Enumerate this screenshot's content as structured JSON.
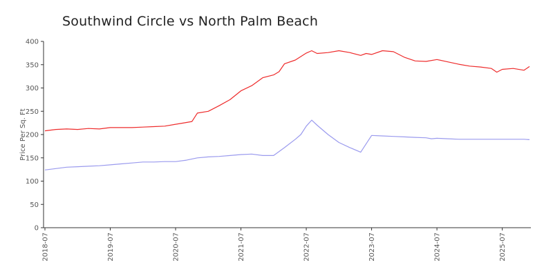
{
  "chart_data": {
    "type": "line",
    "title": "Southwind Circle vs North Palm Beach",
    "ylabel": "Price Per Sq. Ft",
    "xlabel": "",
    "ylim": [
      0,
      400
    ],
    "yticks": [
      "0",
      "50",
      "100",
      "150",
      "200",
      "250",
      "300",
      "350",
      "400"
    ],
    "xticks": [
      "2018-07",
      "2019-07",
      "2020-07",
      "2021-07",
      "2022-07",
      "2023-07",
      "2024-07",
      "2025-07"
    ],
    "xrange": [
      "2018-07",
      "2025-12"
    ],
    "legend": "none",
    "grid": false,
    "colors": {
      "red_series": "#ee2a2a",
      "blue_series": "#9a9aee",
      "axis": "#333333"
    },
    "series": [
      {
        "color": "#ee2a2a",
        "points": [
          [
            "2018-07",
            208
          ],
          [
            "2018-09",
            211
          ],
          [
            "2018-11",
            212
          ],
          [
            "2019-01",
            211
          ],
          [
            "2019-03",
            213
          ],
          [
            "2019-05",
            212
          ],
          [
            "2019-07",
            215
          ],
          [
            "2019-09",
            215
          ],
          [
            "2019-11",
            215
          ],
          [
            "2020-01",
            216
          ],
          [
            "2020-03",
            217
          ],
          [
            "2020-05",
            218
          ],
          [
            "2020-07",
            222
          ],
          [
            "2020-09",
            226
          ],
          [
            "2020-10",
            228
          ],
          [
            "2020-11",
            246
          ],
          [
            "2021-01",
            250
          ],
          [
            "2021-03",
            262
          ],
          [
            "2021-05",
            275
          ],
          [
            "2021-07",
            294
          ],
          [
            "2021-09",
            305
          ],
          [
            "2021-11",
            322
          ],
          [
            "2022-01",
            328
          ],
          [
            "2022-02",
            335
          ],
          [
            "2022-03",
            352
          ],
          [
            "2022-05",
            360
          ],
          [
            "2022-07",
            375
          ],
          [
            "2022-08",
            380
          ],
          [
            "2022-09",
            374
          ],
          [
            "2022-11",
            376
          ],
          [
            "2023-01",
            380
          ],
          [
            "2023-03",
            376
          ],
          [
            "2023-05",
            370
          ],
          [
            "2023-06",
            374
          ],
          [
            "2023-07",
            372
          ],
          [
            "2023-09",
            380
          ],
          [
            "2023-11",
            378
          ],
          [
            "2024-01",
            366
          ],
          [
            "2024-03",
            358
          ],
          [
            "2024-05",
            357
          ],
          [
            "2024-07",
            361
          ],
          [
            "2024-09",
            356
          ],
          [
            "2024-11",
            351
          ],
          [
            "2025-01",
            347
          ],
          [
            "2025-03",
            345
          ],
          [
            "2025-05",
            342
          ],
          [
            "2025-06",
            334
          ],
          [
            "2025-07",
            340
          ],
          [
            "2025-09",
            342
          ],
          [
            "2025-11",
            338
          ],
          [
            "2025-12",
            346
          ]
        ]
      },
      {
        "color": "#9a9aee",
        "points": [
          [
            "2018-07",
            124
          ],
          [
            "2018-09",
            127
          ],
          [
            "2018-11",
            130
          ],
          [
            "2019-01",
            131
          ],
          [
            "2019-03",
            132
          ],
          [
            "2019-05",
            133
          ],
          [
            "2019-07",
            135
          ],
          [
            "2019-09",
            137
          ],
          [
            "2019-11",
            139
          ],
          [
            "2020-01",
            141
          ],
          [
            "2020-03",
            141
          ],
          [
            "2020-05",
            142
          ],
          [
            "2020-07",
            142
          ],
          [
            "2020-09",
            145
          ],
          [
            "2020-11",
            150
          ],
          [
            "2021-01",
            152
          ],
          [
            "2021-03",
            153
          ],
          [
            "2021-05",
            155
          ],
          [
            "2021-07",
            157
          ],
          [
            "2021-09",
            158
          ],
          [
            "2021-11",
            155
          ],
          [
            "2022-01",
            155
          ],
          [
            "2022-03",
            172
          ],
          [
            "2022-05",
            190
          ],
          [
            "2022-06",
            200
          ],
          [
            "2022-07",
            218
          ],
          [
            "2022-08",
            231
          ],
          [
            "2022-09",
            220
          ],
          [
            "2022-11",
            200
          ],
          [
            "2023-01",
            183
          ],
          [
            "2023-03",
            172
          ],
          [
            "2023-05",
            162
          ],
          [
            "2023-07",
            198
          ],
          [
            "2023-09",
            197
          ],
          [
            "2023-11",
            196
          ],
          [
            "2024-01",
            195
          ],
          [
            "2024-03",
            194
          ],
          [
            "2024-05",
            193
          ],
          [
            "2024-06",
            191
          ],
          [
            "2024-07",
            192
          ],
          [
            "2024-09",
            191
          ],
          [
            "2024-11",
            190
          ],
          [
            "2025-01",
            190
          ],
          [
            "2025-03",
            190
          ],
          [
            "2025-05",
            190
          ],
          [
            "2025-07",
            190
          ],
          [
            "2025-09",
            190
          ],
          [
            "2025-11",
            190
          ],
          [
            "2025-12",
            189
          ]
        ]
      }
    ]
  }
}
